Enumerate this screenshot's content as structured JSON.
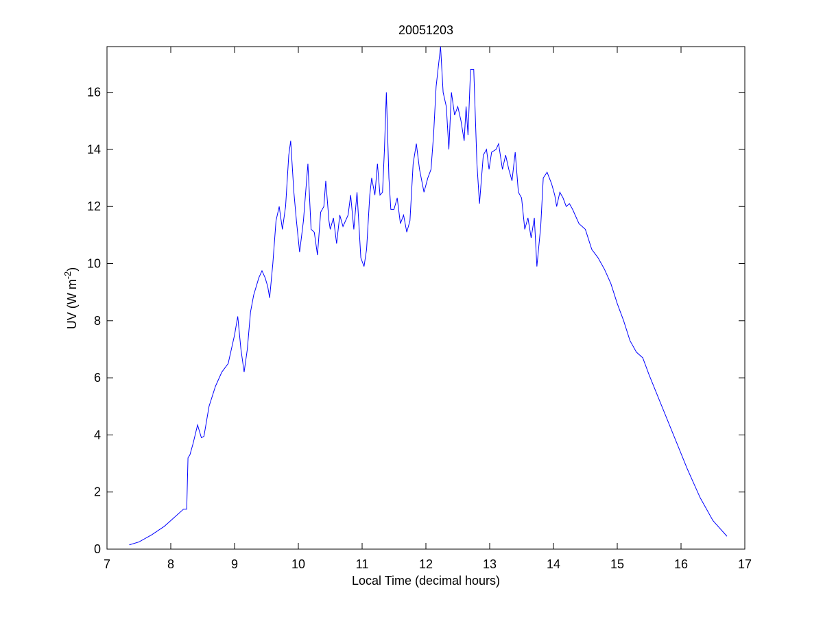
{
  "chart_data": {
    "type": "line",
    "title": "20051203",
    "x_label": "Local Time (decimal hours)",
    "y_label": {
      "text": "UV (W m",
      "superscript": "-2",
      "suffix": ")"
    },
    "color": "#0000ff",
    "xlim": [
      7,
      17
    ],
    "xticks": [
      7,
      8,
      9,
      10,
      11,
      12,
      13,
      14,
      15,
      16,
      17
    ],
    "ylim": [
      0,
      17.6
    ],
    "yticks": [
      0,
      2,
      4,
      6,
      8,
      10,
      12,
      14,
      16
    ],
    "x": [
      7.35,
      7.5,
      7.7,
      7.9,
      8.0,
      8.1,
      8.2,
      8.25,
      8.27,
      8.3,
      8.35,
      8.42,
      8.48,
      8.52,
      8.6,
      8.7,
      8.8,
      8.9,
      9.0,
      9.05,
      9.1,
      9.15,
      9.2,
      9.25,
      9.3,
      9.38,
      9.43,
      9.48,
      9.52,
      9.55,
      9.6,
      9.65,
      9.7,
      9.75,
      9.8,
      9.85,
      9.88,
      9.93,
      9.97,
      10.02,
      10.08,
      10.15,
      10.2,
      10.25,
      10.3,
      10.35,
      10.4,
      10.43,
      10.48,
      10.5,
      10.55,
      10.6,
      10.65,
      10.7,
      10.78,
      10.82,
      10.87,
      10.92,
      10.98,
      11.03,
      11.07,
      11.12,
      11.15,
      11.2,
      11.24,
      11.28,
      11.32,
      11.35,
      11.38,
      11.42,
      11.45,
      11.5,
      11.55,
      11.6,
      11.65,
      11.7,
      11.75,
      11.8,
      11.85,
      11.9,
      11.97,
      12.03,
      12.08,
      12.12,
      12.16,
      12.2,
      12.23,
      12.27,
      12.32,
      12.36,
      12.4,
      12.45,
      12.5,
      12.55,
      12.6,
      12.63,
      12.66,
      12.7,
      12.75,
      12.8,
      12.84,
      12.9,
      12.95,
      12.99,
      13.03,
      13.1,
      13.14,
      13.2,
      13.25,
      13.3,
      13.35,
      13.4,
      13.45,
      13.5,
      13.55,
      13.6,
      13.65,
      13.7,
      13.74,
      13.8,
      13.84,
      13.9,
      13.97,
      14.02,
      14.05,
      14.1,
      14.15,
      14.2,
      14.25,
      14.3,
      14.4,
      14.5,
      14.6,
      14.7,
      14.8,
      14.9,
      15.0,
      15.1,
      15.2,
      15.3,
      15.4,
      15.5,
      15.7,
      15.9,
      16.1,
      16.3,
      16.5,
      16.72
    ],
    "values": [
      0.15,
      0.25,
      0.5,
      0.8,
      1.0,
      1.2,
      1.4,
      1.4,
      3.2,
      3.3,
      3.7,
      4.35,
      3.9,
      3.95,
      5.0,
      5.7,
      6.2,
      6.5,
      7.5,
      8.15,
      7.0,
      6.2,
      7.0,
      8.3,
      8.9,
      9.5,
      9.75,
      9.5,
      9.2,
      8.8,
      10.0,
      11.5,
      12.0,
      11.2,
      12.0,
      13.8,
      14.3,
      12.5,
      11.5,
      10.4,
      11.5,
      13.5,
      11.2,
      11.1,
      10.3,
      11.8,
      12.0,
      12.9,
      11.5,
      11.2,
      11.6,
      10.7,
      11.7,
      11.3,
      11.7,
      12.4,
      11.2,
      12.5,
      10.2,
      9.9,
      10.5,
      12.4,
      13.0,
      12.4,
      13.5,
      12.4,
      12.5,
      14.0,
      16.0,
      13.0,
      11.9,
      11.9,
      12.3,
      11.4,
      11.7,
      11.1,
      11.5,
      13.5,
      14.2,
      13.3,
      12.5,
      13.0,
      13.3,
      14.5,
      16.2,
      17.0,
      17.6,
      16.0,
      15.5,
      14.0,
      16.0,
      15.2,
      15.5,
      15.0,
      14.3,
      15.5,
      14.5,
      16.8,
      16.8,
      13.5,
      12.1,
      13.8,
      14.0,
      13.3,
      13.9,
      14.0,
      14.2,
      13.3,
      13.8,
      13.3,
      12.9,
      13.9,
      12.5,
      12.3,
      11.2,
      11.6,
      10.9,
      11.6,
      9.9,
      11.3,
      13.0,
      13.2,
      12.8,
      12.4,
      12.0,
      12.5,
      12.3,
      12.0,
      12.1,
      11.9,
      11.4,
      11.2,
      10.5,
      10.2,
      9.8,
      9.3,
      8.6,
      8.0,
      7.3,
      6.9,
      6.7,
      6.1,
      5.0,
      3.9,
      2.8,
      1.8,
      1.0,
      0.45
    ]
  }
}
